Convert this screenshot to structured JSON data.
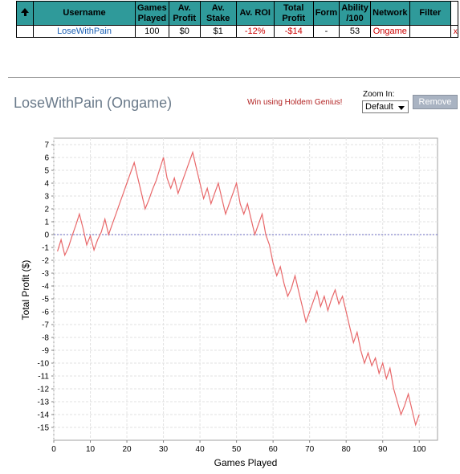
{
  "table": {
    "headers": [
      "Username",
      "Games\nPlayed",
      "Av.\nProfit",
      "Av.\nStake",
      "Av. ROI",
      "Total\nProfit",
      "Form",
      "Ability\n/100",
      "Network",
      "Filter"
    ],
    "row": {
      "username": "LoseWithPain",
      "games_played": "100",
      "av_profit": "$0",
      "av_stake": "$1",
      "av_roi": "-12%",
      "total_profit": "-$14",
      "form": "-",
      "ability": "53",
      "network": "Ongame",
      "filter": "",
      "remove_mark": "x"
    }
  },
  "player_title": "LoseWithPain (Ongame)",
  "promo_link": "Win using Holdem Genius!",
  "zoom": {
    "label": "Zoom In:",
    "selected": "Default"
  },
  "remove_button": "Remove",
  "colors": {
    "header_bg": "#2f9a9a",
    "line": "#e8686a",
    "zero_line": "#6a6ac0",
    "negative": "#cc0000"
  },
  "chart_data": {
    "type": "line",
    "xlabel": "Games Played",
    "ylabel": "Total Profit ($)",
    "xlim": [
      0,
      105
    ],
    "ylim": [
      -16,
      7.5
    ],
    "xticks": [
      0,
      10,
      20,
      30,
      40,
      50,
      60,
      70,
      80,
      90,
      100
    ],
    "yticks": [
      7,
      6,
      5,
      4,
      3,
      2,
      1,
      0,
      -1,
      -2,
      -3,
      -4,
      -5,
      -6,
      -7,
      -8,
      -9,
      -10,
      -11,
      -12,
      -13,
      -14,
      -15
    ],
    "grid": true,
    "zero_line": 0,
    "series": [
      {
        "x": [
          1,
          2,
          3,
          4,
          5,
          6,
          7,
          8,
          9,
          10,
          11,
          12,
          13,
          14,
          15,
          16,
          17,
          18,
          19,
          20,
          21,
          22,
          23,
          24,
          25,
          26,
          27,
          28,
          29,
          30,
          31,
          32,
          33,
          34,
          35,
          36,
          37,
          38,
          39,
          40,
          41,
          42,
          43,
          44,
          45,
          46,
          47,
          48,
          49,
          50,
          51,
          52,
          53,
          54,
          55,
          56,
          57,
          58,
          59,
          60,
          61,
          62,
          63,
          64,
          65,
          66,
          67,
          68,
          69,
          70,
          71,
          72,
          73,
          74,
          75,
          76,
          77,
          78,
          79,
          80,
          81,
          82,
          83,
          84,
          85,
          86,
          87,
          88,
          89,
          90,
          91,
          92,
          93,
          94,
          95,
          96,
          97,
          98,
          99,
          100
        ],
        "y": [
          -1.3,
          -0.4,
          -1.6,
          -1.0,
          -0.1,
          0.7,
          1.6,
          0.5,
          -0.8,
          -0.1,
          -1.2,
          -0.4,
          0.2,
          1.2,
          0.0,
          0.8,
          1.6,
          2.4,
          3.2,
          4.0,
          4.8,
          5.6,
          4.4,
          3.2,
          2.0,
          2.7,
          3.5,
          4.2,
          5.1,
          6.0,
          4.4,
          3.6,
          4.4,
          3.2,
          4.0,
          4.8,
          5.6,
          6.4,
          5.2,
          4.0,
          2.8,
          3.6,
          2.4,
          3.2,
          4.0,
          2.8,
          1.6,
          2.4,
          3.2,
          4.0,
          2.4,
          1.6,
          2.4,
          1.2,
          0.0,
          0.8,
          1.6,
          0.0,
          -0.8,
          -2.2,
          -3.2,
          -2.5,
          -3.8,
          -4.8,
          -4.2,
          -3.2,
          -4.4,
          -5.6,
          -6.8,
          -6.0,
          -5.2,
          -4.4,
          -5.6,
          -4.8,
          -5.9,
          -5.0,
          -4.3,
          -5.4,
          -4.8,
          -6.0,
          -7.2,
          -8.4,
          -7.6,
          -9.0,
          -10.0,
          -9.2,
          -10.2,
          -9.6,
          -10.8,
          -10.0,
          -11.2,
          -10.4,
          -12.0,
          -13.0,
          -14.0,
          -13.3,
          -12.4,
          -13.6,
          -14.8,
          -14.0
        ]
      }
    ]
  }
}
